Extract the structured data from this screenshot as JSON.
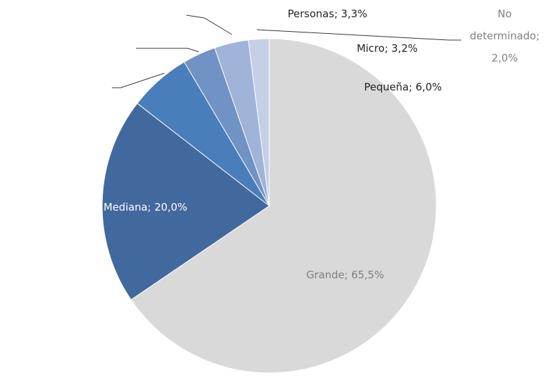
{
  "chart_data": {
    "type": "pie",
    "categories": [
      "Grande",
      "Mediana",
      "Pequeña",
      "Micro",
      "Personas",
      "No determinado"
    ],
    "values": [
      65.5,
      20.0,
      6.0,
      3.2,
      3.3,
      2.0
    ],
    "value_labels": [
      "65,5%",
      "20,0%",
      "6,0%",
      "3,2%",
      "3,3%",
      "2,0%"
    ],
    "label_separator": "; ",
    "colors": [
      "#d9d9d9",
      "#41699e",
      "#4a7ebb",
      "#7092c4",
      "#9fb4d8",
      "#c5d0e6"
    ]
  }
}
